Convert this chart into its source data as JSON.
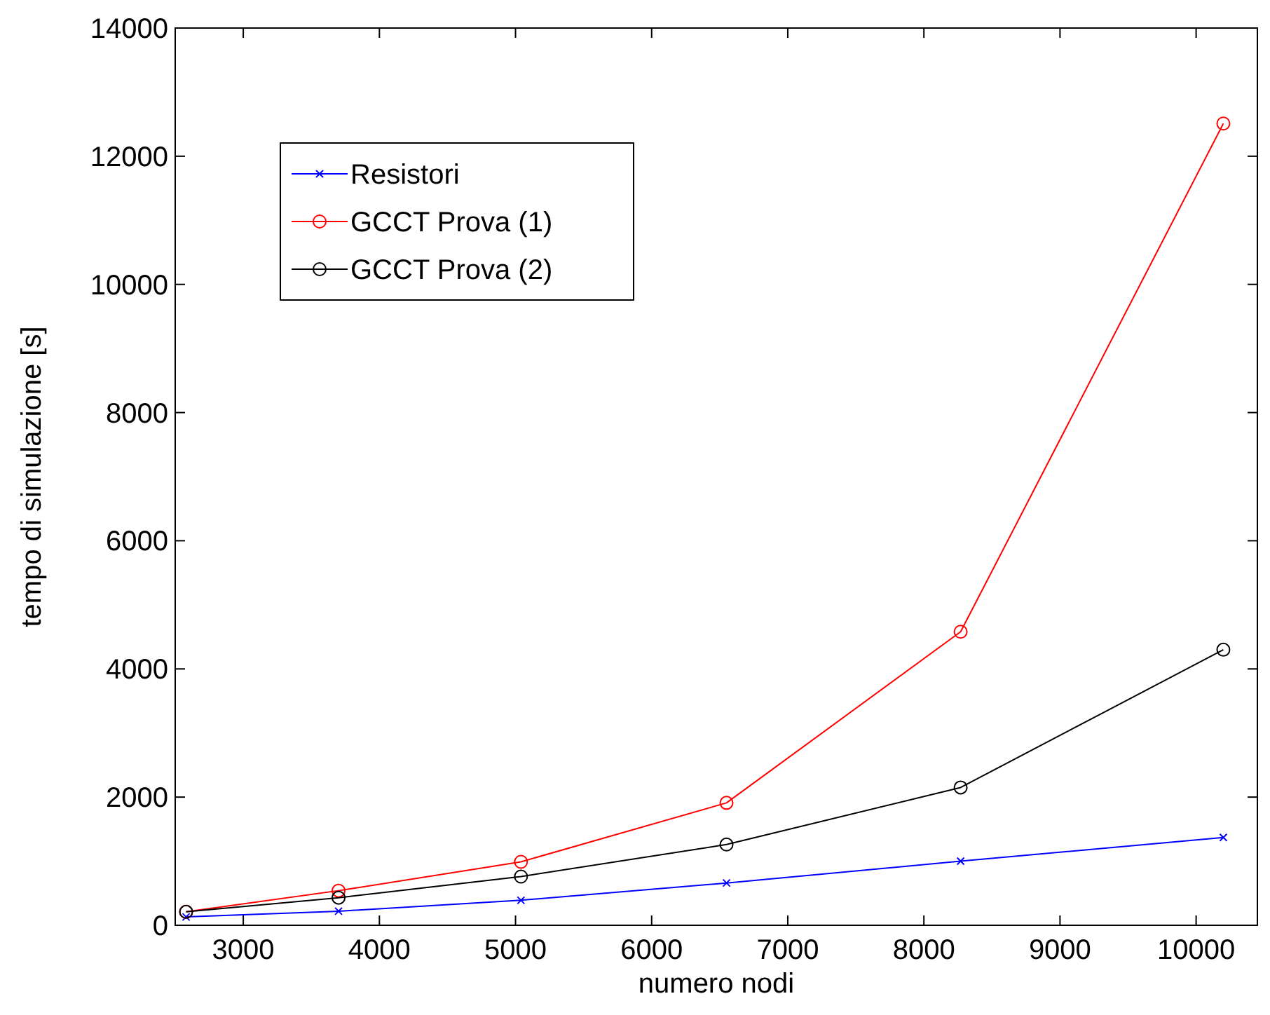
{
  "chart_data": {
    "type": "line",
    "xlabel": "numero nodi",
    "ylabel": "tempo di simulazione [s]",
    "x": [
      2580,
      3700,
      5040,
      6550,
      8270,
      10200
    ],
    "xlim": [
      2500,
      10450
    ],
    "xticks": [
      3000,
      4000,
      5000,
      6000,
      7000,
      8000,
      9000,
      10000
    ],
    "ylim": [
      0,
      14000
    ],
    "yticks": [
      0,
      2000,
      4000,
      6000,
      8000,
      10000,
      12000,
      14000
    ],
    "grid": false,
    "legend": "top left",
    "line_style": "solid",
    "series": [
      {
        "name": "Resistori",
        "color": "#0000ff",
        "marker": "cross",
        "values": [
          130,
          220,
          390,
          660,
          1000,
          1370
        ]
      },
      {
        "name": "GCCT Prova (1)",
        "color": "#ff0000",
        "marker": "circle",
        "values": [
          210,
          540,
          990,
          1910,
          4580,
          12510
        ]
      },
      {
        "name": "GCCT Prova (2)",
        "color": "#000000",
        "marker": "circle",
        "values": [
          210,
          430,
          760,
          1260,
          2150,
          4300
        ]
      }
    ]
  }
}
